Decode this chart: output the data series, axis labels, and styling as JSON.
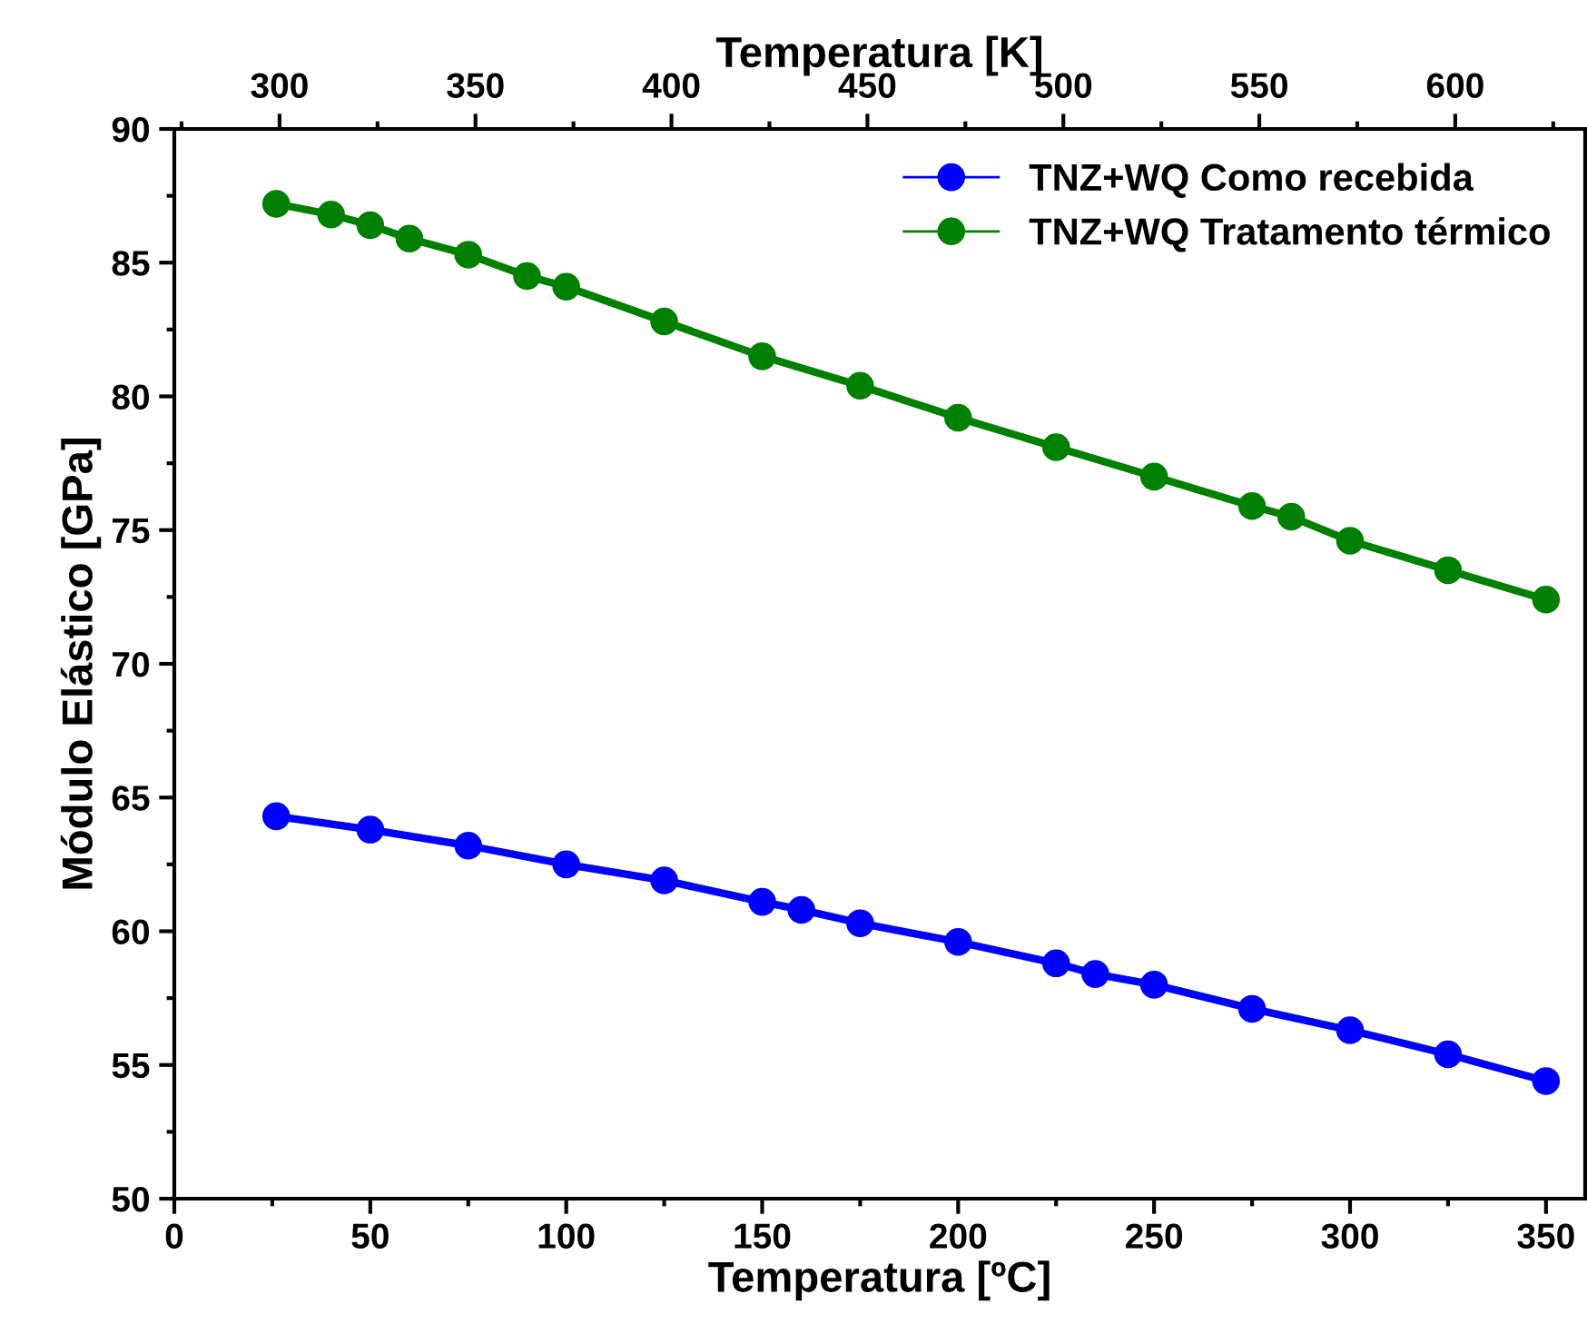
{
  "chart_data": {
    "type": "line",
    "xlabel": "Temperatura [ºC]",
    "ylabel": "Módulo Elástico [GPa]",
    "x2label": "Temperatura [K]",
    "xlim": [
      0,
      360
    ],
    "xticks": [
      0,
      50,
      100,
      150,
      200,
      250,
      300,
      350
    ],
    "ylim": [
      50,
      90
    ],
    "yticks": [
      50,
      55,
      60,
      65,
      70,
      75,
      80,
      85,
      90
    ],
    "x2lim": [
      273.15,
      633.15
    ],
    "x2ticks": [
      300,
      350,
      400,
      450,
      500,
      550,
      600
    ],
    "marker": "circle",
    "legend": "top right",
    "grid": false,
    "series": [
      {
        "name": "TNZ+WQ Como recebida",
        "color": "#0000ff",
        "x": [
          26,
          50,
          75,
          100,
          125,
          150,
          160,
          175,
          200,
          225,
          235,
          250,
          275,
          300,
          325,
          350
        ],
        "values": [
          64.3,
          63.8,
          63.2,
          62.5,
          61.9,
          61.1,
          60.8,
          60.3,
          59.6,
          58.8,
          58.4,
          58.0,
          57.1,
          56.3,
          55.4,
          54.4
        ]
      },
      {
        "name": "TNZ+WQ Tratamento térmico",
        "color": "#008000",
        "x": [
          26,
          40,
          50,
          60,
          75,
          90,
          100,
          125,
          150,
          175,
          200,
          225,
          250,
          275,
          285,
          300,
          325,
          350
        ],
        "values": [
          87.2,
          86.8,
          86.4,
          85.9,
          85.3,
          84.5,
          84.1,
          82.8,
          81.5,
          80.4,
          79.2,
          78.1,
          77.0,
          75.9,
          75.5,
          74.6,
          73.5,
          72.4
        ]
      }
    ]
  }
}
